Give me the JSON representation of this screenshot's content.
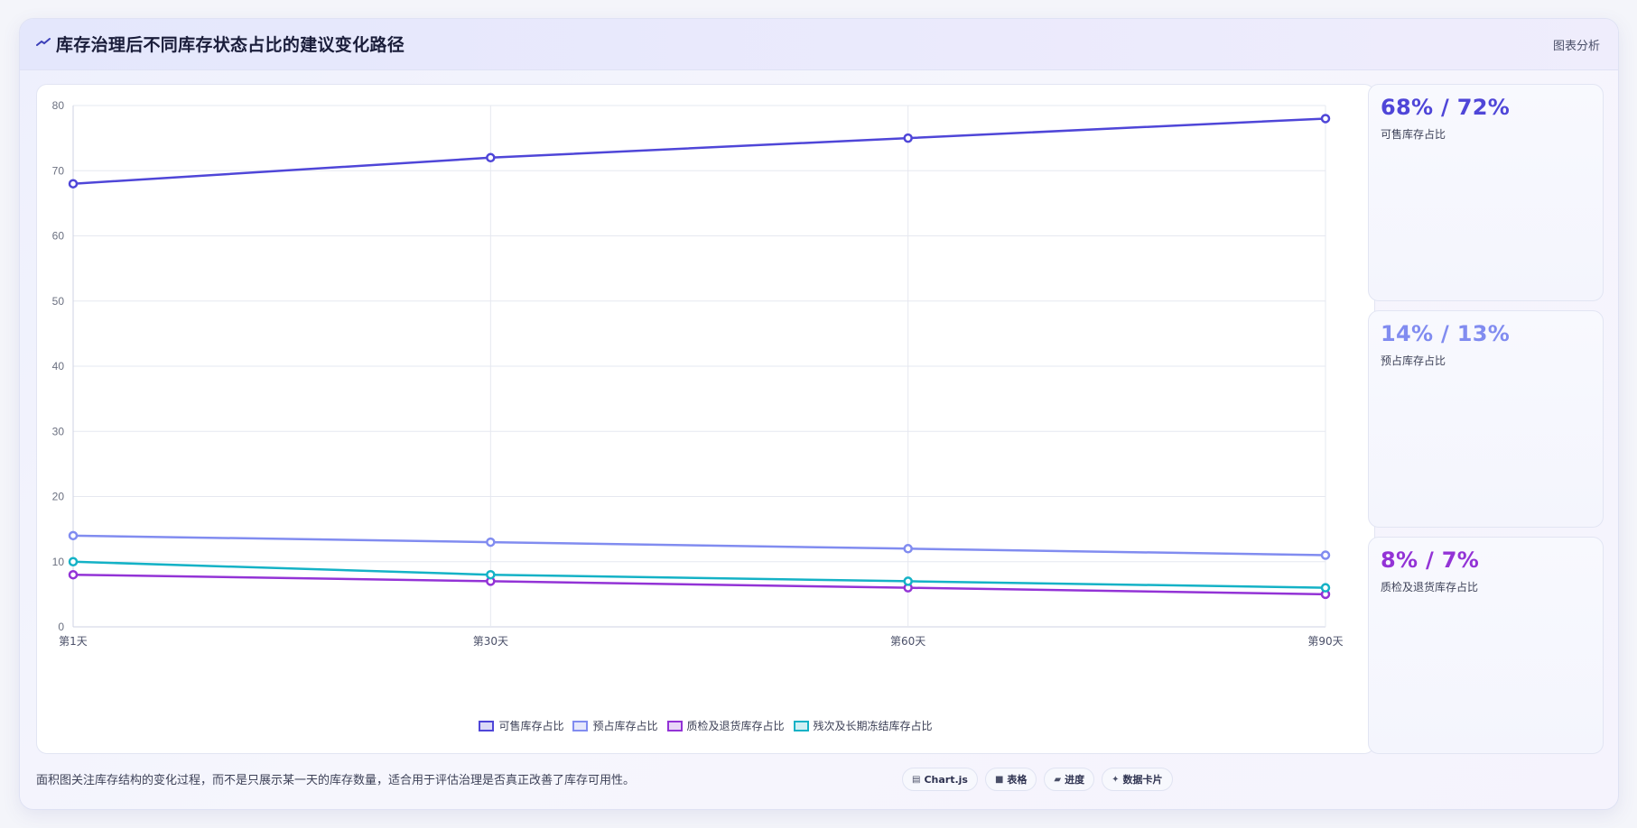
{
  "header": {
    "title": "库存治理后不同库存状态占比的建议变化路径",
    "right_label": "图表分析",
    "icon": "trend-line-icon"
  },
  "chart_data": {
    "type": "line",
    "categories": [
      "第1天",
      "第30天",
      "第60天",
      "第90天"
    ],
    "ylim": [
      0,
      80
    ],
    "yticks": [
      0,
      10,
      20,
      30,
      40,
      50,
      60,
      70,
      80
    ],
    "grid": true,
    "legend_position": "bottom",
    "series": [
      {
        "name": "可售库存占比",
        "values": [
          68,
          72,
          75,
          78
        ],
        "color": "#4f46d8"
      },
      {
        "name": "预占库存占比",
        "values": [
          14,
          13,
          12,
          11
        ],
        "color": "#818cf0"
      },
      {
        "name": "质检及退货库存占比",
        "values": [
          8,
          7,
          6,
          5
        ],
        "color": "#9333d6"
      },
      {
        "name": "残次及长期冻结库存占比",
        "values": [
          10,
          8,
          7,
          6
        ],
        "color": "#14b2c6"
      }
    ]
  },
  "side_cards": [
    {
      "value": "68% / 72%",
      "label": "可售库存占比",
      "color": "#4f46d8"
    },
    {
      "value": "14% / 13%",
      "label": "预占库存占比",
      "color": "#818cf0"
    },
    {
      "value": "8% / 7%",
      "label": "质检及退货库存占比",
      "color": "#9333d6"
    }
  ],
  "footer": {
    "note": "面积图关注库存结构的变化过程，而不是只展示某一天的库存数量，适合用于评估治理是否真正改善了库存可用性。",
    "chips": [
      {
        "label": "Chart.js",
        "icon": "chart-icon"
      },
      {
        "label": "表格",
        "icon": "table-icon"
      },
      {
        "label": "进度",
        "icon": "progress-icon"
      },
      {
        "label": "数据卡片",
        "icon": "sparkle-icon"
      }
    ]
  }
}
